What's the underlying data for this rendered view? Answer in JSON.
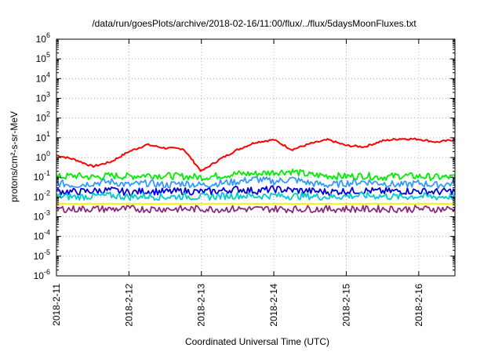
{
  "chart_data": {
    "type": "line",
    "title": "/data/run/goesPlots/archive/2018-02-16/11:00/flux/../flux/5daysMoonFluxes.txt",
    "xlabel": "Coordinated Universal Time (UTC)",
    "ylabel": "protons/cm²-s-sr-MeV",
    "yscale": "log",
    "ylim": [
      1e-06,
      1000000.0
    ],
    "xlim": [
      "2018-02-11 00:00",
      "2018-02-16 12:00"
    ],
    "grid": true,
    "legend": "none",
    "x_ticks": [
      "2018-2-11",
      "2018-2-12",
      "2018-2-13",
      "2018-2-14",
      "2018-2-15",
      "2018-2-16"
    ],
    "y_ticks": [
      {
        "base": "10",
        "exp": "6"
      },
      {
        "base": "10",
        "exp": "5"
      },
      {
        "base": "10",
        "exp": "4"
      },
      {
        "base": "10",
        "exp": "3"
      },
      {
        "base": "10",
        "exp": "2"
      },
      {
        "base": "10",
        "exp": "1"
      },
      {
        "base": "10",
        "exp": "0"
      },
      {
        "base": "10",
        "exp": "-1"
      },
      {
        "base": "10",
        "exp": "-2"
      },
      {
        "base": "10",
        "exp": "-3"
      },
      {
        "base": "10",
        "exp": "-4"
      },
      {
        "base": "10",
        "exp": "-5"
      },
      {
        "base": "10",
        "exp": "-6"
      }
    ],
    "x_days": [
      0,
      0.25,
      0.5,
      0.75,
      1.0,
      1.25,
      1.5,
      1.75,
      2.0,
      2.25,
      2.5,
      2.75,
      3.0,
      3.25,
      3.5,
      3.75,
      4.0,
      4.25,
      4.5,
      4.75,
      5.0,
      5.25,
      5.5
    ],
    "series": [
      {
        "color": "#ff0000",
        "values": [
          1.3,
          0.8,
          0.35,
          0.6,
          2.0,
          4.5,
          3.0,
          2.8,
          0.2,
          0.8,
          2.5,
          6.0,
          8.0,
          2.5,
          5.0,
          8.0,
          4.0,
          3.5,
          7.0,
          9.0,
          8.5,
          6.0,
          8.0
        ]
      },
      {
        "color": "#00ee00",
        "values": [
          0.1,
          0.12,
          0.1,
          0.12,
          0.11,
          0.13,
          0.12,
          0.11,
          0.1,
          0.12,
          0.15,
          0.15,
          0.18,
          0.2,
          0.13,
          0.12,
          0.11,
          0.12,
          0.1,
          0.12,
          0.11,
          0.1,
          0.1
        ]
      },
      {
        "color": "#3399ff",
        "values": [
          0.05,
          0.04,
          0.05,
          0.06,
          0.04,
          0.05,
          0.04,
          0.05,
          0.04,
          0.05,
          0.06,
          0.08,
          0.06,
          0.08,
          0.05,
          0.04,
          0.05,
          0.06,
          0.05,
          0.04,
          0.05,
          0.04,
          0.05
        ]
      },
      {
        "color": "#0000dd",
        "values": [
          0.02,
          0.018,
          0.02,
          0.022,
          0.017,
          0.02,
          0.018,
          0.02,
          0.018,
          0.02,
          0.025,
          0.02,
          0.025,
          0.022,
          0.02,
          0.018,
          0.02,
          0.021,
          0.019,
          0.02,
          0.02,
          0.018,
          0.02
        ]
      },
      {
        "color": "#00cccc",
        "values": [
          0.011,
          0.01,
          0.011,
          0.012,
          0.01,
          0.011,
          0.01,
          0.011,
          0.01,
          0.011,
          0.012,
          0.011,
          0.012,
          0.011,
          0.011,
          0.01,
          0.011,
          0.012,
          0.011,
          0.01,
          0.011,
          0.01,
          0.011
        ]
      },
      {
        "color": "#ffee00",
        "values": [
          0.0045,
          0.0045,
          0.0045,
          0.0045,
          0.0045,
          0.0045,
          0.0045,
          0.0045,
          0.0045,
          0.0045,
          0.0045,
          0.0045,
          0.0045,
          0.0045,
          0.0045,
          0.0045,
          0.0045,
          0.0045,
          0.0045,
          0.0045,
          0.0045,
          0.0045,
          0.0045
        ]
      },
      {
        "color": "#8b2a7a",
        "values": [
          0.0025,
          0.0024,
          0.0025,
          0.0024,
          0.0025,
          0.0024,
          0.0025,
          0.0024,
          0.0025,
          0.0024,
          0.0025,
          0.0024,
          0.0025,
          0.0024,
          0.0025,
          0.0024,
          0.0025,
          0.0024,
          0.0025,
          0.0024,
          0.0025,
          0.0024,
          0.0025
        ]
      }
    ]
  }
}
